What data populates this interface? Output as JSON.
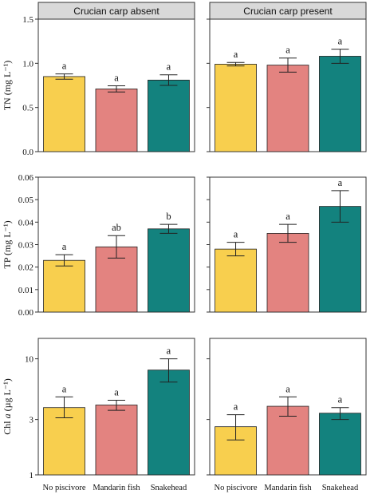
{
  "colors": {
    "no_piscivore": "#F8CF4E",
    "mandarin_fish": "#E38380",
    "snakehead": "#13827E",
    "strip": "#D9D9D9",
    "frame": "#333333"
  },
  "chart_data": [
    {
      "type": "bar",
      "row": "TN",
      "panel": "Crucian carp absent",
      "categories": [
        "No piscivore",
        "Mandarin fish",
        "Snakehead"
      ],
      "ylabel": "TN (mg L⁻¹)",
      "ylim": [
        0,
        1.5
      ],
      "yticks": [
        0,
        0.5,
        1.0,
        1.5
      ],
      "ytick_labels": [
        "0.0",
        "0.5",
        "1.0",
        "1.5"
      ],
      "values": [
        0.85,
        0.71,
        0.81
      ],
      "errors": [
        0.03,
        0.035,
        0.06
      ],
      "significance": [
        "a",
        "a",
        "a"
      ]
    },
    {
      "type": "bar",
      "row": "TN",
      "panel": "Crucian carp present",
      "categories": [
        "No piscivore",
        "Mandarin fish",
        "Snakehead"
      ],
      "ylim": [
        0,
        1.5
      ],
      "values": [
        0.99,
        0.98,
        1.08
      ],
      "errors": [
        0.02,
        0.08,
        0.08
      ],
      "significance": [
        "a",
        "a",
        "a"
      ]
    },
    {
      "type": "bar",
      "row": "TP",
      "panel": "Crucian carp absent",
      "categories": [
        "No piscivore",
        "Mandarin fish",
        "Snakehead"
      ],
      "ylabel": "TP (mg L⁻¹)",
      "ylim": [
        0,
        0.06
      ],
      "yticks": [
        0,
        0.01,
        0.02,
        0.03,
        0.04,
        0.05,
        0.06
      ],
      "ytick_labels": [
        "0.00",
        "0.01",
        "0.02",
        "0.03",
        "0.04",
        "0.05",
        "0.06"
      ],
      "values": [
        0.023,
        0.029,
        0.037
      ],
      "errors": [
        0.0025,
        0.005,
        0.002
      ],
      "significance": [
        "a",
        "ab",
        "b"
      ]
    },
    {
      "type": "bar",
      "row": "TP",
      "panel": "Crucian carp present",
      "categories": [
        "No piscivore",
        "Mandarin fish",
        "Snakehead"
      ],
      "ylim": [
        0,
        0.06
      ],
      "values": [
        0.028,
        0.035,
        0.047
      ],
      "errors": [
        0.003,
        0.004,
        0.007
      ],
      "significance": [
        "a",
        "a",
        "a"
      ]
    },
    {
      "type": "bar",
      "row": "Chl a",
      "panel": "Crucian carp absent",
      "categories": [
        "No piscivore",
        "Mandarin fish",
        "Snakehead"
      ],
      "ylabel_prefix": "Chl ",
      "ylabel_italic": "a",
      "ylabel_suffix": " (µg L⁻¹)",
      "yscale": "log",
      "ylim": [
        1,
        15
      ],
      "yticks": [
        1,
        3,
        10
      ],
      "ytick_labels": [
        "1",
        "3",
        "10"
      ],
      "values": [
        3.8,
        4.0,
        8.0
      ],
      "errors_low": [
        3.1,
        3.6,
        6.3
      ],
      "errors_high": [
        4.7,
        4.4,
        10.0
      ],
      "significance": [
        "a",
        "a",
        "a"
      ]
    },
    {
      "type": "bar",
      "row": "Chl a",
      "panel": "Crucian carp present",
      "categories": [
        "No piscivore",
        "Mandarin fish",
        "Snakehead"
      ],
      "yscale": "log",
      "ylim": [
        1,
        15
      ],
      "values": [
        2.6,
        3.9,
        3.4
      ],
      "errors_low": [
        2.0,
        3.2,
        3.0
      ],
      "errors_high": [
        3.3,
        4.7,
        3.8
      ],
      "significance": [
        "a",
        "a",
        "a"
      ]
    }
  ]
}
